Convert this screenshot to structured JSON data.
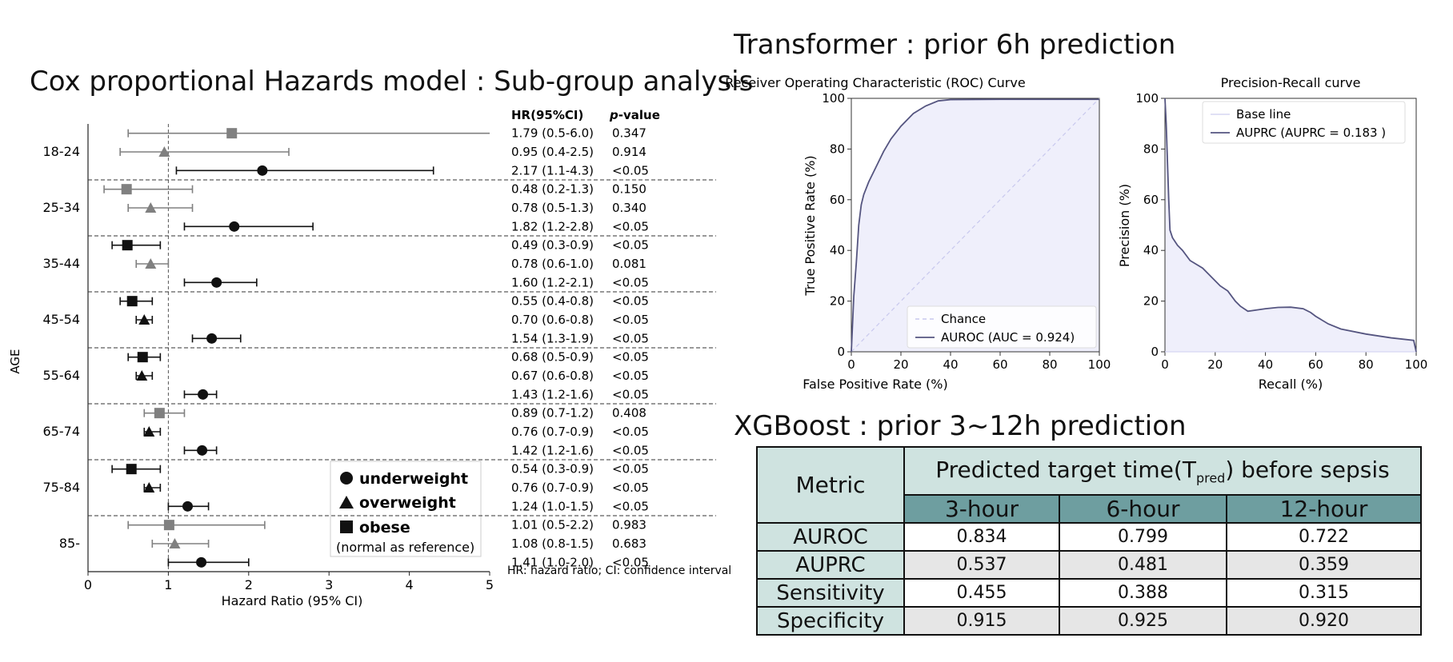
{
  "titles": {
    "cox": "Cox proportional Hazards model : Sub-group analysis",
    "transformer": "Transformer : prior 6h prediction",
    "xgboost": "XGBoost : prior 3~12h prediction"
  },
  "chart_data": [
    {
      "type": "scatter",
      "subtype": "forest-plot",
      "xlabel": "Hazard Ratio (95% CI)",
      "ylabel": "AGE",
      "xlim": [
        0,
        5
      ],
      "xticks": [
        "0",
        "1",
        "2",
        "3",
        "4",
        "5"
      ],
      "reference_line": 1,
      "col_headers": {
        "hr": "HR(95%CI)",
        "p_main": "p",
        "p_rest": "-value"
      },
      "footnote": "HR: hazard ratio; CI: confidence interval",
      "legend": {
        "items": [
          {
            "label": "underweight",
            "marker": "circle"
          },
          {
            "label": "overweight",
            "marker": "triangle"
          },
          {
            "label": "obese",
            "marker": "square"
          }
        ],
        "note": "(normal as reference)"
      },
      "marker_colors": {
        "significant": "#111111",
        "nonsignificant": "#808080"
      },
      "groups": [
        {
          "label": "18-24",
          "rows": [
            {
              "marker": "square",
              "hr": 1.79,
              "lo": 0.5,
              "hi": 6.0,
              "hr_text": "1.79 (0.5-6.0)",
              "p_text": "0.347",
              "significant": false
            },
            {
              "marker": "triangle",
              "hr": 0.95,
              "lo": 0.4,
              "hi": 2.5,
              "hr_text": "0.95 (0.4-2.5)",
              "p_text": "0.914",
              "significant": false
            },
            {
              "marker": "circle",
              "hr": 2.17,
              "lo": 1.1,
              "hi": 4.3,
              "hr_text": "2.17 (1.1-4.3)",
              "p_text": "<0.05",
              "significant": true
            }
          ]
        },
        {
          "label": "25-34",
          "rows": [
            {
              "marker": "square",
              "hr": 0.48,
              "lo": 0.2,
              "hi": 1.3,
              "hr_text": "0.48 (0.2-1.3)",
              "p_text": "0.150",
              "significant": false
            },
            {
              "marker": "triangle",
              "hr": 0.78,
              "lo": 0.5,
              "hi": 1.3,
              "hr_text": "0.78 (0.5-1.3)",
              "p_text": "0.340",
              "significant": false
            },
            {
              "marker": "circle",
              "hr": 1.82,
              "lo": 1.2,
              "hi": 2.8,
              "hr_text": "1.82 (1.2-2.8)",
              "p_text": "<0.05",
              "significant": true
            }
          ]
        },
        {
          "label": "35-44",
          "rows": [
            {
              "marker": "square",
              "hr": 0.49,
              "lo": 0.3,
              "hi": 0.9,
              "hr_text": "0.49 (0.3-0.9)",
              "p_text": "<0.05",
              "significant": true
            },
            {
              "marker": "triangle",
              "hr": 0.78,
              "lo": 0.6,
              "hi": 1.0,
              "hr_text": "0.78 (0.6-1.0)",
              "p_text": "0.081",
              "significant": false
            },
            {
              "marker": "circle",
              "hr": 1.6,
              "lo": 1.2,
              "hi": 2.1,
              "hr_text": "1.60 (1.2-2.1)",
              "p_text": "<0.05",
              "significant": true
            }
          ]
        },
        {
          "label": "45-54",
          "rows": [
            {
              "marker": "square",
              "hr": 0.55,
              "lo": 0.4,
              "hi": 0.8,
              "hr_text": "0.55 (0.4-0.8)",
              "p_text": "<0.05",
              "significant": true
            },
            {
              "marker": "triangle",
              "hr": 0.7,
              "lo": 0.6,
              "hi": 0.8,
              "hr_text": "0.70 (0.6-0.8)",
              "p_text": "<0.05",
              "significant": true
            },
            {
              "marker": "circle",
              "hr": 1.54,
              "lo": 1.3,
              "hi": 1.9,
              "hr_text": "1.54 (1.3-1.9)",
              "p_text": "<0.05",
              "significant": true
            }
          ]
        },
        {
          "label": "55-64",
          "rows": [
            {
              "marker": "square",
              "hr": 0.68,
              "lo": 0.5,
              "hi": 0.9,
              "hr_text": "0.68 (0.5-0.9)",
              "p_text": "<0.05",
              "significant": true
            },
            {
              "marker": "triangle",
              "hr": 0.67,
              "lo": 0.6,
              "hi": 0.8,
              "hr_text": "0.67 (0.6-0.8)",
              "p_text": "<0.05",
              "significant": true
            },
            {
              "marker": "circle",
              "hr": 1.43,
              "lo": 1.2,
              "hi": 1.6,
              "hr_text": "1.43 (1.2-1.6)",
              "p_text": "<0.05",
              "significant": true
            }
          ]
        },
        {
          "label": "65-74",
          "rows": [
            {
              "marker": "square",
              "hr": 0.89,
              "lo": 0.7,
              "hi": 1.2,
              "hr_text": "0.89 (0.7-1.2)",
              "p_text": "0.408",
              "significant": false
            },
            {
              "marker": "triangle",
              "hr": 0.76,
              "lo": 0.7,
              "hi": 0.9,
              "hr_text": "0.76 (0.7-0.9)",
              "p_text": "<0.05",
              "significant": true
            },
            {
              "marker": "circle",
              "hr": 1.42,
              "lo": 1.2,
              "hi": 1.6,
              "hr_text": "1.42 (1.2-1.6)",
              "p_text": "<0.05",
              "significant": true
            }
          ]
        },
        {
          "label": "75-84",
          "rows": [
            {
              "marker": "square",
              "hr": 0.54,
              "lo": 0.3,
              "hi": 0.9,
              "hr_text": "0.54 (0.3-0.9)",
              "p_text": "<0.05",
              "significant": true
            },
            {
              "marker": "triangle",
              "hr": 0.76,
              "lo": 0.7,
              "hi": 0.9,
              "hr_text": "0.76 (0.7-0.9)",
              "p_text": "<0.05",
              "significant": true
            },
            {
              "marker": "circle",
              "hr": 1.24,
              "lo": 1.0,
              "hi": 1.5,
              "hr_text": "1.24 (1.0-1.5)",
              "p_text": "<0.05",
              "significant": true
            }
          ]
        },
        {
          "label": "85-",
          "rows": [
            {
              "marker": "square",
              "hr": 1.01,
              "lo": 0.5,
              "hi": 2.2,
              "hr_text": "1.01 (0.5-2.2)",
              "p_text": "0.983",
              "significant": false
            },
            {
              "marker": "triangle",
              "hr": 1.08,
              "lo": 0.8,
              "hi": 1.5,
              "hr_text": "1.08 (0.8-1.5)",
              "p_text": "0.683",
              "significant": false
            },
            {
              "marker": "circle",
              "hr": 1.41,
              "lo": 1.0,
              "hi": 2.0,
              "hr_text": "1.41 (1.0-2.0)",
              "p_text": "<0.05",
              "significant": true
            }
          ]
        }
      ]
    },
    {
      "type": "line",
      "title": "Receiver Operating Characteristic (ROC) Curve",
      "xlabel": "False Positive Rate (%)",
      "ylabel": "True Positive Rate (%)",
      "xlim": [
        0,
        100
      ],
      "ylim": [
        0,
        100
      ],
      "xticks": [
        "0",
        "20",
        "40",
        "60",
        "80",
        "100"
      ],
      "yticks": [
        "0",
        "20",
        "40",
        "60",
        "80",
        "100"
      ],
      "legend_position": "lower-right",
      "fill_color": "#efeffb",
      "series": [
        {
          "name": "Chance",
          "style": "dashed",
          "color": "#c8c8ee",
          "x": [
            0,
            100
          ],
          "y": [
            0,
            100
          ]
        },
        {
          "name": "AUROC (AUC = 0.924)",
          "style": "solid",
          "color": "#555580",
          "x": [
            0,
            1,
            2,
            3,
            4,
            5,
            7,
            10,
            13,
            16,
            20,
            25,
            30,
            35,
            40,
            60,
            80,
            100
          ],
          "y": [
            0,
            22,
            35,
            50,
            58,
            62,
            67,
            73,
            79,
            84,
            89,
            94,
            97,
            99,
            99.5,
            99.6,
            99.6,
            99.6
          ]
        }
      ]
    },
    {
      "type": "line",
      "title": "Precision-Recall curve",
      "xlabel": "Recall (%)",
      "ylabel": "Precision (%)",
      "xlim": [
        0,
        100
      ],
      "ylim": [
        0,
        100
      ],
      "xticks": [
        "0",
        "20",
        "40",
        "60",
        "80",
        "100"
      ],
      "yticks": [
        "0",
        "20",
        "40",
        "60",
        "80",
        "100"
      ],
      "legend_position": "top-right",
      "fill_color": "#efeffb",
      "series": [
        {
          "name": "Base line",
          "style": "solid",
          "color": "#d6d6f2",
          "x": [
            0,
            100
          ],
          "y": [
            0,
            0
          ]
        },
        {
          "name": "AUPRC (AUPRC = 0.183 )",
          "style": "solid",
          "color": "#555580",
          "x": [
            0,
            0.5,
            1,
            1.5,
            2,
            3,
            5,
            7,
            10,
            15,
            18,
            20,
            22,
            25,
            28,
            30,
            33,
            40,
            45,
            50,
            55,
            58,
            60,
            65,
            70,
            80,
            90,
            99,
            100
          ],
          "y": [
            100,
            90,
            75,
            60,
            48,
            45,
            42,
            40,
            36,
            33,
            30,
            28,
            26,
            24,
            20,
            18,
            16,
            17,
            17.5,
            17.6,
            17,
            15.5,
            14,
            11,
            9,
            7,
            5.5,
            4.5,
            0
          ]
        }
      ]
    },
    {
      "type": "table",
      "header_metric": "Metric",
      "header_super": {
        "prefix": "Predicted target time(T",
        "sub": "pred",
        "suffix": ") before sepsis"
      },
      "columns": [
        "3-hour",
        "6-hour",
        "12-hour"
      ],
      "rows": [
        {
          "metric": "AUROC",
          "values": [
            "0.834",
            "0.799",
            "0.722"
          ]
        },
        {
          "metric": "AUPRC",
          "values": [
            "0.537",
            "0.481",
            "0.359"
          ]
        },
        {
          "metric": "Sensitivity",
          "values": [
            "0.455",
            "0.388",
            "0.315"
          ]
        },
        {
          "metric": "Specificity",
          "values": [
            "0.915",
            "0.925",
            "0.920"
          ]
        }
      ]
    }
  ]
}
